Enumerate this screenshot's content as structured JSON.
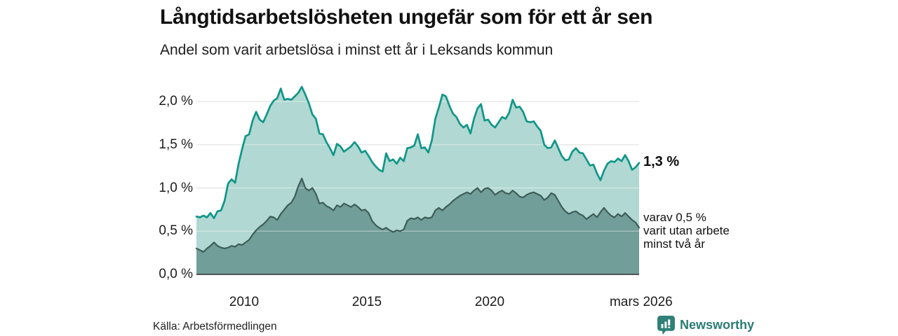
{
  "header": {
    "title": "Långtidsarbetslösheten ungefär som för ett år sen",
    "subtitle": "Andel som varit arbetslösa i minst ett år i Leksands kommun"
  },
  "annotations": {
    "total_label": "1,3 %",
    "subset_lines": [
      "varav 0,5 %",
      "varit utan arbete",
      "minst två år"
    ]
  },
  "footer": {
    "source": "Källa: Arbetsförmedlingen",
    "brand": "Newsworthy"
  },
  "chart_data": {
    "type": "area",
    "title": "Långtidsarbetslösheten ungefär som för ett år sen",
    "subtitle": "Andel som varit arbetslösa i minst ett år i Leksands kommun",
    "unit": "%",
    "grid": true,
    "x_axis": {
      "start_year": 2008.06,
      "end_year": 2026.17,
      "ticks": [
        {
          "label": "2010",
          "year": 2010
        },
        {
          "label": "2015",
          "year": 2015
        },
        {
          "label": "2020",
          "year": 2020
        },
        {
          "label": "mars 2026",
          "year": 2026.17
        }
      ]
    },
    "y_axis": {
      "range": [
        0,
        2.3
      ],
      "ticks": [
        {
          "label": "0,0 %",
          "value": 0.0
        },
        {
          "label": "0,5 %",
          "value": 0.5
        },
        {
          "label": "1,0 %",
          "value": 1.0
        },
        {
          "label": "1,5 %",
          "value": 1.5
        },
        {
          "label": "2,0 %",
          "value": 2.0
        }
      ]
    },
    "series": [
      {
        "name": "Andel som varit arbetslösa i minst ett år",
        "latest_label": "1,3 %",
        "line_color": "#109688",
        "fill_color": "#b1d8d2",
        "values": [
          0.67,
          0.66,
          0.68,
          0.66,
          0.71,
          0.65,
          0.73,
          0.74,
          0.85,
          1.05,
          1.1,
          1.06,
          1.28,
          1.45,
          1.6,
          1.62,
          1.78,
          1.88,
          1.79,
          1.76,
          1.85,
          1.95,
          2.01,
          2.04,
          2.15,
          2.02,
          2.03,
          2.02,
          2.06,
          2.1,
          2.17,
          2.08,
          1.98,
          1.85,
          1.8,
          1.63,
          1.62,
          1.53,
          1.46,
          1.38,
          1.51,
          1.48,
          1.42,
          1.45,
          1.48,
          1.53,
          1.48,
          1.41,
          1.43,
          1.37,
          1.3,
          1.25,
          1.21,
          1.19,
          1.4,
          1.31,
          1.33,
          1.28,
          1.35,
          1.31,
          1.46,
          1.47,
          1.49,
          1.62,
          1.46,
          1.47,
          1.41,
          1.55,
          1.8,
          1.93,
          2.08,
          2.06,
          1.95,
          1.86,
          1.82,
          1.74,
          1.7,
          1.73,
          1.63,
          1.8,
          1.92,
          1.97,
          1.78,
          1.79,
          1.73,
          1.7,
          1.76,
          1.82,
          1.8,
          1.87,
          2.02,
          1.93,
          1.94,
          1.88,
          1.77,
          1.76,
          1.77,
          1.71,
          1.66,
          1.5,
          1.46,
          1.47,
          1.55,
          1.46,
          1.37,
          1.32,
          1.33,
          1.42,
          1.46,
          1.41,
          1.4,
          1.33,
          1.26,
          1.27,
          1.17,
          1.09,
          1.2,
          1.28,
          1.31,
          1.3,
          1.34,
          1.31,
          1.38,
          1.31,
          1.21,
          1.24,
          1.29
        ]
      },
      {
        "name": "varav 0,5 % varit utan arbete minst två år",
        "latest_label": "0,5 %",
        "line_color": "#3e5d58",
        "fill_color": "#719e98",
        "values": [
          0.3,
          0.28,
          0.26,
          0.3,
          0.33,
          0.37,
          0.33,
          0.31,
          0.3,
          0.31,
          0.33,
          0.32,
          0.35,
          0.34,
          0.37,
          0.4,
          0.46,
          0.51,
          0.55,
          0.58,
          0.62,
          0.67,
          0.66,
          0.63,
          0.7,
          0.75,
          0.8,
          0.83,
          0.9,
          1.02,
          1.11,
          1.0,
          0.97,
          1.0,
          0.93,
          0.82,
          0.83,
          0.79,
          0.77,
          0.74,
          0.8,
          0.78,
          0.82,
          0.8,
          0.78,
          0.81,
          0.78,
          0.74,
          0.75,
          0.71,
          0.62,
          0.57,
          0.54,
          0.52,
          0.54,
          0.51,
          0.49,
          0.51,
          0.5,
          0.52,
          0.62,
          0.65,
          0.64,
          0.66,
          0.63,
          0.66,
          0.65,
          0.66,
          0.74,
          0.77,
          0.74,
          0.78,
          0.81,
          0.85,
          0.88,
          0.91,
          0.93,
          0.95,
          0.93,
          0.97,
          1.0,
          0.95,
          0.99,
          1.0,
          0.97,
          0.92,
          0.95,
          0.97,
          0.94,
          0.93,
          0.97,
          0.94,
          0.9,
          0.89,
          0.92,
          0.94,
          0.95,
          0.93,
          0.91,
          0.86,
          0.89,
          0.94,
          0.92,
          0.85,
          0.78,
          0.73,
          0.7,
          0.72,
          0.73,
          0.7,
          0.68,
          0.64,
          0.67,
          0.7,
          0.66,
          0.72,
          0.77,
          0.72,
          0.68,
          0.66,
          0.7,
          0.67,
          0.71,
          0.67,
          0.63,
          0.6,
          0.54
        ]
      }
    ]
  }
}
